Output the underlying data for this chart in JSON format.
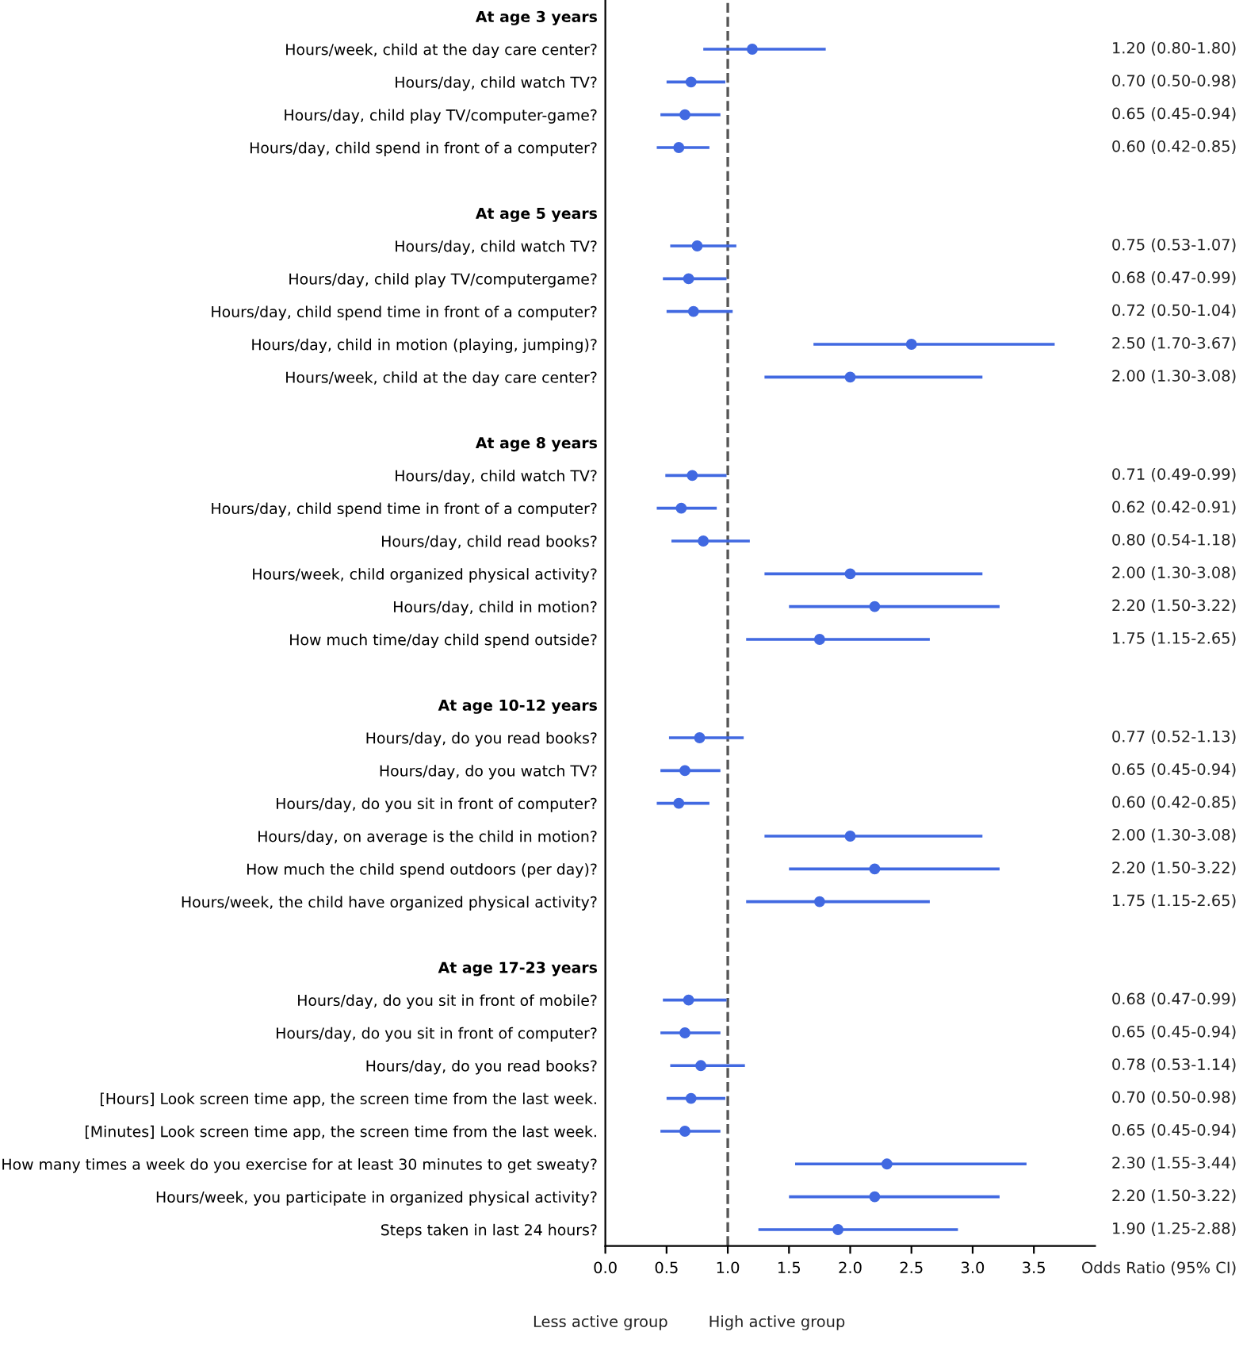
{
  "chart_data": {
    "type": "scatter",
    "orientation": "horizontal",
    "marker": "circle",
    "grid": false,
    "categories": [
      "At age 3 years",
      "Hours/week, child at the day care center?",
      "Hours/day, child watch TV?",
      "Hours/day, child play TV/computer-game?",
      "Hours/day, child spend in front of a computer?",
      null,
      "At age 5 years",
      "Hours/day, child watch TV?",
      "Hours/day, child play TV/computergame?",
      "Hours/day, child spend time in front of a computer?",
      "Hours/day, child in motion (playing, jumping)?",
      "Hours/week, child at the day care center?",
      null,
      "At age 8 years",
      "Hours/day, child watch TV?",
      "Hours/day, child spend time in front of a computer?",
      "Hours/day, child read books?",
      "Hours/week, child organized physical activity?",
      "Hours/day, child in motion?",
      "How much time/day child spend outside?",
      null,
      "At age 10-12 years",
      "Hours/day, do you read books?",
      "Hours/day, do you watch TV?",
      "Hours/day, do you sit in front of computer?",
      "Hours/day, on average is the child in motion?",
      "How much the child spend outdoors (per day)?",
      "Hours/week, the child have organized physical activity?",
      null,
      "At age 17-23 years",
      "Hours/day, do you sit in front of mobile?",
      "Hours/day, do you sit in front of computer?",
      "Hours/day, do you read books?",
      "[Hours] Look screen time app, the screen time from the last week.",
      "[Minutes] Look screen time app, the screen time from the last week.",
      "How many times a week do you exercise for at least 30 minutes to get sweaty?",
      "Hours/week, you participate in organized physical activity?",
      "Steps taken in last 24 hours?"
    ],
    "series": [
      {
        "color": "#4169e1",
        "values": [
          null,
          1.2,
          0.7,
          0.65,
          0.6,
          null,
          null,
          0.75,
          0.68,
          0.72,
          2.5,
          2.0,
          null,
          null,
          0.71,
          0.62,
          0.8,
          2.0,
          2.2,
          1.75,
          null,
          null,
          0.77,
          0.65,
          0.6,
          2.0,
          2.2,
          1.75,
          null,
          null,
          0.68,
          0.65,
          0.78,
          0.7,
          0.65,
          2.3,
          2.2,
          1.9
        ],
        "errors": [
          null,
          [
            0.8,
            1.8
          ],
          [
            0.5,
            0.98
          ],
          [
            0.45,
            0.94
          ],
          [
            0.42,
            0.85
          ],
          null,
          null,
          [
            0.53,
            1.07
          ],
          [
            0.47,
            0.99
          ],
          [
            0.5,
            1.04
          ],
          [
            1.7,
            3.67
          ],
          [
            1.3,
            3.08
          ],
          null,
          null,
          [
            0.49,
            0.99
          ],
          [
            0.42,
            0.91
          ],
          [
            0.54,
            1.18
          ],
          [
            1.3,
            3.08
          ],
          [
            1.5,
            3.22
          ],
          [
            1.15,
            2.65
          ],
          null,
          null,
          [
            0.52,
            1.13
          ],
          [
            0.45,
            0.94
          ],
          [
            0.42,
            0.85
          ],
          [
            1.3,
            3.08
          ],
          [
            1.5,
            3.22
          ],
          [
            1.15,
            2.65
          ],
          null,
          null,
          [
            0.47,
            0.99
          ],
          [
            0.45,
            0.94
          ],
          [
            0.53,
            1.14
          ],
          [
            0.5,
            0.98
          ],
          [
            0.45,
            0.94
          ],
          [
            1.55,
            3.44
          ],
          [
            1.5,
            3.22
          ],
          [
            1.25,
            2.88
          ]
        ],
        "value_labels": [
          null,
          "1.20 (0.80-1.80)",
          "0.70 (0.50-0.98)",
          "0.65 (0.45-0.94)",
          "0.60 (0.42-0.85)",
          null,
          null,
          "0.75 (0.53-1.07)",
          "0.68 (0.47-0.99)",
          "0.72 (0.50-1.04)",
          "2.50 (1.70-3.67)",
          "2.00 (1.30-3.08)",
          null,
          null,
          "0.71 (0.49-0.99)",
          "0.62 (0.42-0.91)",
          "0.80 (0.54-1.18)",
          "2.00 (1.30-3.08)",
          "2.20 (1.50-3.22)",
          "1.75 (1.15-2.65)",
          null,
          null,
          "0.77 (0.52-1.13)",
          "0.65 (0.45-0.94)",
          "0.60 (0.42-0.85)",
          "2.00 (1.30-3.08)",
          "2.20 (1.50-3.22)",
          "1.75 (1.15-2.65)",
          null,
          null,
          "0.68 (0.47-0.99)",
          "0.65 (0.45-0.94)",
          "0.78 (0.53-1.14)",
          "0.70 (0.50-0.98)",
          "0.65 (0.45-0.94)",
          "2.30 (1.55-3.44)",
          "2.20 (1.50-3.22)",
          "1.90 (1.25-2.88)"
        ]
      }
    ],
    "xlim": [
      0,
      4
    ],
    "xticks": [
      {
        "value": 0,
        "label": "0.0"
      },
      {
        "value": 0.5,
        "label": "0.5"
      },
      {
        "value": 1,
        "label": "1.0"
      },
      {
        "value": 1.5,
        "label": "1.5"
      },
      {
        "value": 2,
        "label": "2.0"
      },
      {
        "value": 2.5,
        "label": "2.5"
      },
      {
        "value": 3,
        "label": "3.0"
      },
      {
        "value": 3.5,
        "label": "3.5"
      }
    ],
    "ref_lines": [
      {
        "axis": "x",
        "value": 1,
        "color": "#555555",
        "line_style": "dashed"
      }
    ],
    "annotations": [
      "Odds Ratio (95% CI)",
      "Less active group",
      "High active group"
    ]
  }
}
